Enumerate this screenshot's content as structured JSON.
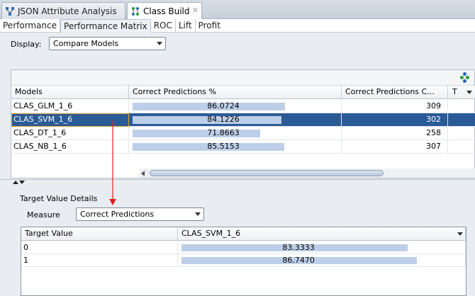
{
  "editor_tabs": [
    {
      "label": "JSON Attribute Analysis",
      "active": false
    },
    {
      "label": "Class Build",
      "active": true
    }
  ],
  "sub_tabs": [
    "Performance",
    "Performance Matrix",
    "ROC",
    "Lift",
    "Profit"
  ],
  "display": {
    "label": "Display:",
    "value": "Compare Models"
  },
  "models_table": {
    "columns": [
      "Models",
      "Correct Predictions %",
      "Correct Predictions C...",
      "T"
    ],
    "rows": [
      {
        "model": "CLAS_GLM_1_6",
        "pct": "86.0724",
        "pct_value": 86.0724,
        "count": "309",
        "selected": false
      },
      {
        "model": "CLAS_SVM_1_6",
        "pct": "84.1226",
        "pct_value": 84.1226,
        "count": "302",
        "selected": true
      },
      {
        "model": "CLAS_DT_1_6",
        "pct": "71.8663",
        "pct_value": 71.8663,
        "count": "258",
        "selected": false
      },
      {
        "model": "CLAS_NB_1_6",
        "pct": "85.5153",
        "pct_value": 85.5153,
        "count": "307",
        "selected": false
      }
    ]
  },
  "target_details": {
    "title": "Target Value Details",
    "measure_label": "Measure",
    "measure_value": "Correct Predictions",
    "columns": [
      "Target Value",
      "CLAS_SVM_1_6"
    ],
    "rows": [
      {
        "target": "0",
        "value": "83.3333",
        "pct_value": 83.3333
      },
      {
        "target": "1",
        "value": "86.7470",
        "pct_value": 86.747
      }
    ]
  },
  "colors": {
    "selection": "#2a5b96",
    "bar": "#bdcfe8",
    "annotation_arrow": "#e02020"
  }
}
